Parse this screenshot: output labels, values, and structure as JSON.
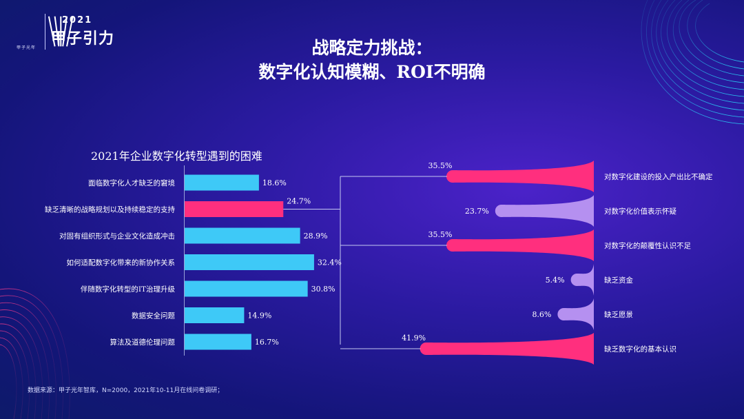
{
  "header": {
    "logo_caption": "甲子光年",
    "event_year": "2021",
    "event_name": "甲子引力"
  },
  "title": {
    "line1": "战略定力挑战：",
    "line2": "数字化认知模糊、ROI不明确"
  },
  "source_note": "数据来源：甲子光年智库，N=2000，2021年10-11月在线问卷调研；",
  "colors": {
    "cyan": "#3ec9f7",
    "pink": "#ff2f7e",
    "lavender": "#b590f0"
  },
  "chart_data": [
    {
      "type": "bar",
      "orientation": "horizontal",
      "title": "2021年企业数字化转型遇到的困难",
      "categories": [
        "面临数字化人才缺乏的窘境",
        "缺乏清晰的战略规划以及持续稳定的支持",
        "对固有组织形式与企业文化造成冲击",
        "如何适配数字化带来的新协作关系",
        "伴随数字化转型的IT治理升级",
        "数据安全问题",
        "算法及道德伦理问题"
      ],
      "values": [
        18.6,
        24.7,
        28.9,
        32.4,
        30.8,
        14.9,
        16.7
      ],
      "labels": [
        "18.6%",
        "24.7%",
        "28.9%",
        "32.4%",
        "30.8%",
        "14.9%",
        "16.7%"
      ],
      "highlight_index": 1,
      "xlim": [
        0,
        45
      ]
    },
    {
      "type": "bar",
      "orientation": "horizontal",
      "style": "tapered",
      "categories": [
        "对数字化建设的投入产出比不确定",
        "对数字化价值表示怀疑",
        "对数字化的颠覆性认识不足",
        "缺乏资金",
        "缺乏愿景",
        "缺乏数字化的基本认识"
      ],
      "values": [
        35.5,
        23.7,
        35.5,
        5.4,
        8.6,
        41.9
      ],
      "labels": [
        "35.5%",
        "23.7%",
        "35.5%",
        "5.4%",
        "8.6%",
        "41.9%"
      ],
      "colors": [
        "pink",
        "lavender",
        "pink",
        "lavender",
        "lavender",
        "pink"
      ],
      "xlim": [
        0,
        45
      ]
    }
  ]
}
